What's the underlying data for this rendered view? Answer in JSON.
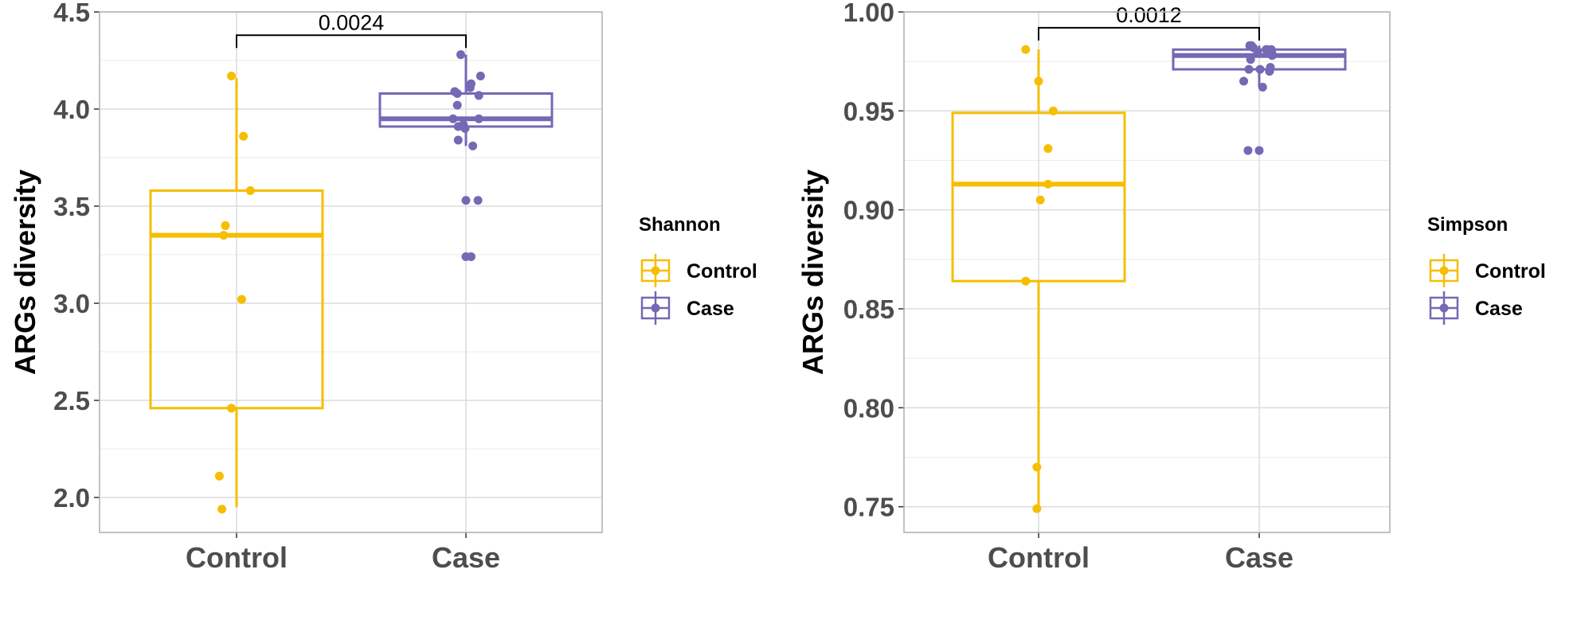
{
  "colors": {
    "Control": "#F5BE00",
    "Case": "#7568B4"
  },
  "chart_data": [
    {
      "type": "box",
      "title": "",
      "xlabel": "",
      "ylabel": "ARGs diversity",
      "ylim": [
        1.82,
        4.5
      ],
      "yticks": [
        2.0,
        2.5,
        3.0,
        3.5,
        4.0,
        4.5
      ],
      "ytick_labels": [
        "2.0",
        "2.5",
        "3.0",
        "3.5",
        "4.0",
        "4.5"
      ],
      "categories": [
        "Control",
        "Case"
      ],
      "legend": {
        "title": "Shannon",
        "position": "right",
        "entries": [
          "Control",
          "Case"
        ]
      },
      "grid": true,
      "pvalue": {
        "label": "0.0024",
        "bracket_y": 4.38
      },
      "boxes": [
        {
          "name": "Control",
          "min": 1.95,
          "q1": 2.46,
          "median": 3.35,
          "q3": 3.58,
          "max": 4.16
        },
        {
          "name": "Case",
          "min": 3.81,
          "q1": 3.91,
          "median": 3.95,
          "q3": 4.08,
          "max": 4.28
        }
      ],
      "points": [
        {
          "group": "Control",
          "values": [
            4.17,
            3.86,
            3.58,
            3.4,
            3.35,
            3.02,
            2.46,
            2.11,
            1.94
          ],
          "jitter": [
            -0.06,
            0.08,
            0.16,
            -0.13,
            -0.15,
            0.06,
            -0.06,
            -0.2,
            -0.17
          ]
        },
        {
          "group": "Case",
          "values": [
            4.28,
            4.17,
            4.13,
            4.11,
            4.09,
            4.08,
            4.07,
            4.02,
            3.95,
            3.95,
            3.92,
            3.91,
            3.9,
            3.84,
            3.81,
            3.53,
            3.53,
            3.24,
            3.24
          ],
          "jitter": [
            -0.06,
            0.17,
            0.06,
            0.05,
            -0.13,
            -0.1,
            0.15,
            -0.1,
            -0.15,
            0.15,
            -0.03,
            -0.09,
            -0.01,
            -0.09,
            0.08,
            0.0,
            0.14,
            -0.0,
            0.06
          ]
        }
      ]
    },
    {
      "type": "box",
      "title": "",
      "xlabel": "",
      "ylabel": "ARGs diversity",
      "ylim": [
        0.737,
        1.0
      ],
      "yticks": [
        0.75,
        0.8,
        0.85,
        0.9,
        0.95,
        1.0
      ],
      "ytick_labels": [
        "0.75",
        "0.80",
        "0.85",
        "0.90",
        "0.95",
        "1.00"
      ],
      "categories": [
        "Control",
        "Case"
      ],
      "legend": {
        "title": "Simpson",
        "position": "right",
        "entries": [
          "Control",
          "Case"
        ]
      },
      "grid": true,
      "pvalue": {
        "label": "0.0012",
        "bracket_y": 0.992
      },
      "boxes": [
        {
          "name": "Control",
          "min": 0.749,
          "q1": 0.864,
          "median": 0.913,
          "q3": 0.949,
          "max": 0.981
        },
        {
          "name": "Case",
          "min": 0.962,
          "q1": 0.971,
          "median": 0.978,
          "q3": 0.981,
          "max": 0.983
        }
      ],
      "points": [
        {
          "group": "Control",
          "values": [
            0.981,
            0.965,
            0.95,
            0.931,
            0.913,
            0.905,
            0.864,
            0.77,
            0.749
          ],
          "jitter": [
            -0.15,
            0.0,
            0.17,
            0.11,
            0.11,
            0.02,
            -0.15,
            -0.02,
            -0.02
          ]
        },
        {
          "group": "Case",
          "values": [
            0.983,
            0.983,
            0.982,
            0.981,
            0.981,
            0.981,
            0.98,
            0.979,
            0.978,
            0.976,
            0.972,
            0.971,
            0.971,
            0.97,
            0.965,
            0.962,
            0.93,
            0.93
          ],
          "jitter": [
            -0.11,
            -0.09,
            -0.07,
            0.08,
            0.14,
            0.09,
            -0.02,
            0.15,
            0.15,
            -0.1,
            0.13,
            0.01,
            -0.12,
            0.12,
            -0.18,
            0.04,
            -0.13,
            0.0
          ]
        }
      ]
    }
  ]
}
